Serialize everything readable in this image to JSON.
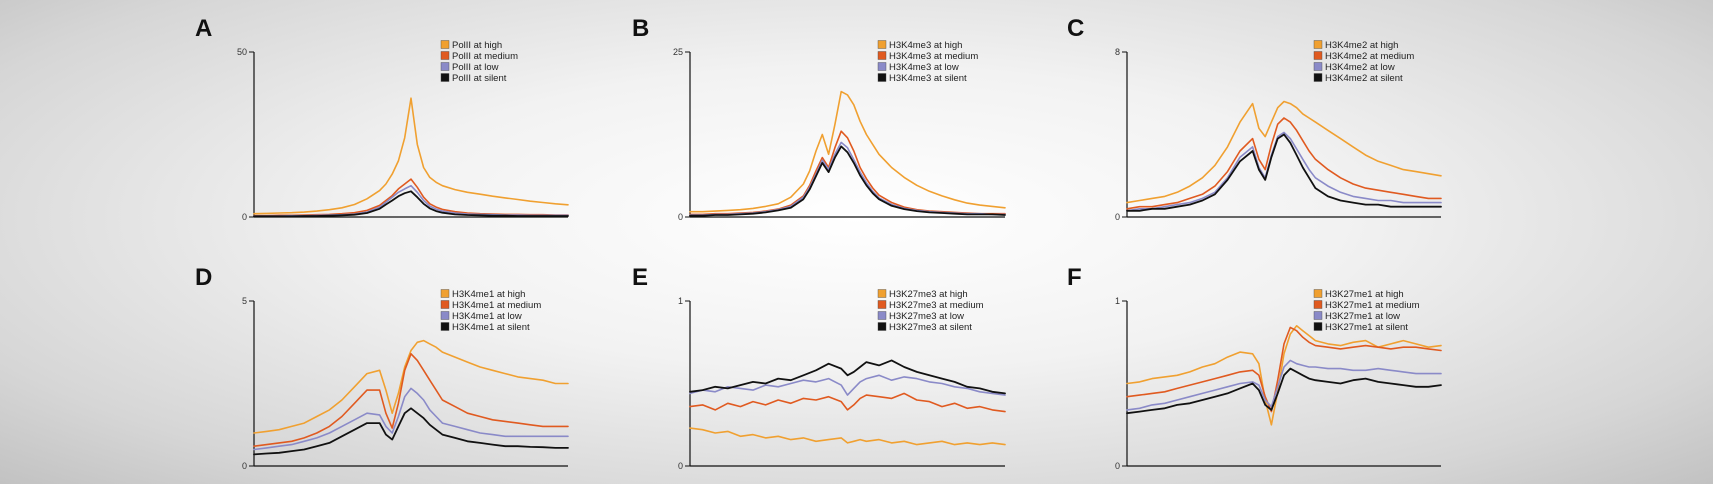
{
  "colors": {
    "high": "#F0A030",
    "medium": "#E05A20",
    "low": "#8A8AC8",
    "silent": "#111111"
  },
  "chart_data": [
    {
      "panel": "A",
      "type": "line",
      "xlabel": "",
      "ylabel": "",
      "ylim": [
        0,
        50
      ],
      "ytick_labels": [
        "50",
        "0"
      ],
      "legend_position": "top-right",
      "x": [
        0,
        4,
        8,
        12,
        16,
        20,
        24,
        28,
        32,
        36,
        40,
        42,
        44,
        46,
        48,
        50,
        52,
        54,
        56,
        58,
        60,
        64,
        68,
        72,
        76,
        80,
        84,
        88,
        92,
        96,
        100
      ],
      "series": [
        {
          "name": "PolII at high",
          "color_key": "high",
          "values": [
            1,
            1.1,
            1.2,
            1.3,
            1.5,
            1.8,
            2.2,
            2.8,
            3.8,
            5.5,
            8,
            10,
            13,
            17,
            24,
            36,
            22,
            15,
            12,
            10.5,
            9.5,
            8.3,
            7.5,
            6.9,
            6.3,
            5.8,
            5.3,
            4.8,
            4.4,
            4.0,
            3.7
          ]
        },
        {
          "name": "PolII at medium",
          "color_key": "medium",
          "values": [
            0.4,
            0.4,
            0.5,
            0.5,
            0.6,
            0.7,
            0.8,
            1.0,
            1.3,
            2.0,
            3.5,
            5,
            6.5,
            8.5,
            10,
            11.5,
            9,
            6,
            4,
            3,
            2.3,
            1.6,
            1.2,
            1.0,
            0.9,
            0.8,
            0.8,
            0.7,
            0.7,
            0.6,
            0.6
          ]
        },
        {
          "name": "PolII at low",
          "color_key": "low",
          "values": [
            0.3,
            0.3,
            0.3,
            0.4,
            0.4,
            0.5,
            0.6,
            0.7,
            0.9,
            1.5,
            3,
            4.5,
            6,
            7.5,
            8.5,
            9.5,
            7.5,
            5,
            3.3,
            2.4,
            1.8,
            1.2,
            0.9,
            0.8,
            0.7,
            0.6,
            0.6,
            0.5,
            0.5,
            0.5,
            0.5
          ]
        },
        {
          "name": "PolII at silent",
          "color_key": "silent",
          "values": [
            0.2,
            0.2,
            0.2,
            0.2,
            0.3,
            0.3,
            0.4,
            0.5,
            0.7,
            1.2,
            2.5,
            3.8,
            5,
            6.3,
            7.2,
            7.8,
            6,
            4,
            2.6,
            1.8,
            1.3,
            0.8,
            0.6,
            0.5,
            0.4,
            0.4,
            0.3,
            0.3,
            0.3,
            0.3,
            0.3
          ]
        }
      ]
    },
    {
      "panel": "B",
      "type": "line",
      "xlabel": "",
      "ylabel": "",
      "ylim": [
        0,
        25
      ],
      "ytick_labels": [
        "25",
        "0"
      ],
      "legend_position": "top-right",
      "x": [
        0,
        4,
        8,
        12,
        16,
        20,
        24,
        28,
        32,
        36,
        38,
        40,
        42,
        44,
        46,
        48,
        50,
        52,
        54,
        56,
        58,
        60,
        64,
        68,
        72,
        76,
        80,
        84,
        88,
        92,
        96,
        100
      ],
      "series": [
        {
          "name": "H3K4me3 at high",
          "color_key": "high",
          "values": [
            0.8,
            0.8,
            0.9,
            1.0,
            1.1,
            1.3,
            1.6,
            2,
            3,
            5,
            7,
            10,
            12.5,
            9.5,
            14,
            19,
            18.5,
            17,
            14.5,
            12.5,
            11,
            9.5,
            7.5,
            6,
            4.8,
            3.9,
            3.2,
            2.6,
            2.1,
            1.8,
            1.6,
            1.4
          ]
        },
        {
          "name": "H3K4me3 at medium",
          "color_key": "medium",
          "values": [
            0.4,
            0.4,
            0.5,
            0.5,
            0.6,
            0.7,
            0.9,
            1.2,
            1.8,
            3.2,
            4.8,
            7,
            9,
            7.5,
            10.5,
            13,
            12,
            10,
            7.5,
            5.8,
            4.4,
            3.3,
            2.2,
            1.5,
            1.1,
            0.9,
            0.8,
            0.7,
            0.6,
            0.5,
            0.5,
            0.5
          ]
        },
        {
          "name": "H3K4me3 at low",
          "color_key": "low",
          "values": [
            0.3,
            0.3,
            0.4,
            0.4,
            0.5,
            0.6,
            0.8,
            1.1,
            1.6,
            3,
            4.5,
            6.5,
            8.6,
            7.2,
            9.5,
            11.3,
            10.5,
            8.7,
            6.8,
            5.2,
            3.9,
            2.9,
            1.9,
            1.3,
            1.0,
            0.8,
            0.7,
            0.6,
            0.5,
            0.5,
            0.4,
            0.4
          ]
        },
        {
          "name": "H3K4me3 at silent",
          "color_key": "silent",
          "values": [
            0.2,
            0.2,
            0.3,
            0.3,
            0.4,
            0.5,
            0.7,
            1.0,
            1.4,
            2.7,
            4.2,
            6.2,
            8.2,
            6.8,
            9,
            10.7,
            9.8,
            8.2,
            6.3,
            4.8,
            3.6,
            2.7,
            1.7,
            1.2,
            0.9,
            0.7,
            0.6,
            0.5,
            0.4,
            0.4,
            0.4,
            0.3
          ]
        }
      ]
    },
    {
      "panel": "C",
      "type": "line",
      "xlabel": "",
      "ylabel": "",
      "ylim": [
        0,
        8
      ],
      "ytick_labels": [
        "8",
        "0"
      ],
      "legend_position": "top-right",
      "x": [
        0,
        4,
        8,
        12,
        16,
        20,
        24,
        28,
        32,
        36,
        40,
        42,
        44,
        46,
        48,
        50,
        52,
        54,
        56,
        58,
        60,
        64,
        68,
        72,
        76,
        80,
        84,
        88,
        92,
        96,
        100
      ],
      "series": [
        {
          "name": "H3K4me2 at high",
          "color_key": "high",
          "values": [
            0.7,
            0.8,
            0.9,
            1.0,
            1.2,
            1.5,
            1.9,
            2.5,
            3.4,
            4.6,
            5.5,
            4.3,
            3.9,
            4.6,
            5.3,
            5.6,
            5.5,
            5.3,
            5.0,
            4.8,
            4.6,
            4.2,
            3.8,
            3.4,
            3.0,
            2.7,
            2.5,
            2.3,
            2.2,
            2.1,
            2.0
          ]
        },
        {
          "name": "H3K4me2 at medium",
          "color_key": "medium",
          "values": [
            0.4,
            0.5,
            0.5,
            0.6,
            0.7,
            0.9,
            1.1,
            1.5,
            2.2,
            3.2,
            3.8,
            2.8,
            2.3,
            3.5,
            4.5,
            4.8,
            4.6,
            4.2,
            3.7,
            3.2,
            2.8,
            2.3,
            1.9,
            1.6,
            1.4,
            1.3,
            1.2,
            1.1,
            1.0,
            0.9,
            0.9
          ]
        },
        {
          "name": "H3K4me2 at low",
          "color_key": "low",
          "values": [
            0.3,
            0.4,
            0.4,
            0.5,
            0.6,
            0.7,
            0.9,
            1.2,
            1.9,
            2.9,
            3.4,
            2.4,
            1.9,
            3.0,
            3.9,
            4.1,
            3.8,
            3.3,
            2.8,
            2.3,
            1.9,
            1.5,
            1.2,
            1.0,
            0.9,
            0.8,
            0.8,
            0.7,
            0.7,
            0.7,
            0.7
          ]
        },
        {
          "name": "H3K4me2 at silent",
          "color_key": "silent",
          "values": [
            0.3,
            0.3,
            0.4,
            0.4,
            0.5,
            0.6,
            0.8,
            1.1,
            1.8,
            2.7,
            3.2,
            2.3,
            1.8,
            2.9,
            3.8,
            4.0,
            3.6,
            3.0,
            2.4,
            1.9,
            1.4,
            1.0,
            0.8,
            0.7,
            0.6,
            0.6,
            0.5,
            0.5,
            0.5,
            0.5,
            0.5
          ]
        }
      ]
    },
    {
      "panel": "D",
      "type": "line",
      "xlabel": "",
      "ylabel": "",
      "ylim": [
        0,
        5
      ],
      "ytick_labels": [
        "5",
        "0"
      ],
      "legend_position": "top-right",
      "x": [
        0,
        4,
        8,
        12,
        16,
        20,
        24,
        28,
        32,
        36,
        40,
        42,
        44,
        46,
        48,
        50,
        52,
        54,
        56,
        58,
        60,
        64,
        68,
        72,
        76,
        80,
        84,
        88,
        92,
        96,
        100
      ],
      "series": [
        {
          "name": "H3K4me1 at high",
          "color_key": "high",
          "values": [
            1.0,
            1.05,
            1.1,
            1.2,
            1.3,
            1.5,
            1.7,
            2.0,
            2.4,
            2.8,
            2.9,
            2.3,
            1.6,
            2.2,
            3.0,
            3.5,
            3.75,
            3.8,
            3.7,
            3.6,
            3.45,
            3.3,
            3.15,
            3.0,
            2.9,
            2.8,
            2.7,
            2.65,
            2.6,
            2.5,
            2.5
          ]
        },
        {
          "name": "H3K4me1 at medium",
          "color_key": "medium",
          "values": [
            0.6,
            0.65,
            0.7,
            0.75,
            0.85,
            1.0,
            1.2,
            1.5,
            1.9,
            2.3,
            2.3,
            1.6,
            1.15,
            1.9,
            2.9,
            3.4,
            3.2,
            2.9,
            2.6,
            2.3,
            2.0,
            1.8,
            1.6,
            1.5,
            1.4,
            1.35,
            1.3,
            1.25,
            1.2,
            1.2,
            1.2
          ]
        },
        {
          "name": "H3K4me1 at low",
          "color_key": "low",
          "values": [
            0.5,
            0.55,
            0.6,
            0.65,
            0.75,
            0.85,
            1.0,
            1.2,
            1.4,
            1.6,
            1.55,
            1.2,
            1.0,
            1.5,
            2.1,
            2.35,
            2.2,
            2.0,
            1.7,
            1.5,
            1.3,
            1.2,
            1.1,
            1.0,
            0.95,
            0.9,
            0.9,
            0.9,
            0.9,
            0.9,
            0.9
          ]
        },
        {
          "name": "H3K4me1 at silent",
          "color_key": "silent",
          "values": [
            0.35,
            0.38,
            0.4,
            0.45,
            0.5,
            0.6,
            0.7,
            0.9,
            1.1,
            1.3,
            1.3,
            0.95,
            0.8,
            1.2,
            1.6,
            1.75,
            1.6,
            1.45,
            1.25,
            1.1,
            0.95,
            0.85,
            0.75,
            0.7,
            0.65,
            0.6,
            0.6,
            0.58,
            0.57,
            0.55,
            0.55
          ]
        }
      ]
    },
    {
      "panel": "E",
      "type": "line",
      "xlabel": "",
      "ylabel": "",
      "ylim": [
        0,
        1
      ],
      "ytick_labels": [
        "1",
        "0"
      ],
      "legend_position": "top-right",
      "x": [
        0,
        4,
        8,
        12,
        16,
        20,
        24,
        28,
        32,
        36,
        40,
        44,
        48,
        50,
        52,
        54,
        56,
        60,
        64,
        68,
        72,
        76,
        80,
        84,
        88,
        92,
        96,
        100
      ],
      "series": [
        {
          "name": "H3K27me3 at high",
          "color_key": "high",
          "values": [
            0.23,
            0.22,
            0.2,
            0.21,
            0.18,
            0.19,
            0.17,
            0.18,
            0.16,
            0.17,
            0.15,
            0.16,
            0.17,
            0.14,
            0.15,
            0.16,
            0.15,
            0.16,
            0.14,
            0.15,
            0.13,
            0.14,
            0.15,
            0.13,
            0.14,
            0.13,
            0.14,
            0.13
          ]
        },
        {
          "name": "H3K27me3 at medium",
          "color_key": "medium",
          "values": [
            0.36,
            0.37,
            0.34,
            0.38,
            0.36,
            0.39,
            0.37,
            0.4,
            0.38,
            0.41,
            0.4,
            0.42,
            0.39,
            0.34,
            0.37,
            0.41,
            0.43,
            0.42,
            0.41,
            0.44,
            0.4,
            0.39,
            0.36,
            0.38,
            0.35,
            0.36,
            0.34,
            0.33
          ]
        },
        {
          "name": "H3K27me3 at low",
          "color_key": "low",
          "values": [
            0.44,
            0.46,
            0.45,
            0.48,
            0.47,
            0.46,
            0.49,
            0.48,
            0.5,
            0.52,
            0.51,
            0.53,
            0.49,
            0.43,
            0.47,
            0.51,
            0.53,
            0.55,
            0.52,
            0.54,
            0.53,
            0.51,
            0.5,
            0.48,
            0.47,
            0.45,
            0.44,
            0.43
          ]
        },
        {
          "name": "H3K27me3 at silent",
          "color_key": "silent",
          "values": [
            0.45,
            0.46,
            0.48,
            0.47,
            0.49,
            0.51,
            0.5,
            0.53,
            0.52,
            0.55,
            0.58,
            0.62,
            0.59,
            0.55,
            0.57,
            0.6,
            0.63,
            0.61,
            0.64,
            0.6,
            0.57,
            0.55,
            0.53,
            0.51,
            0.48,
            0.47,
            0.45,
            0.44
          ]
        }
      ]
    },
    {
      "panel": "F",
      "type": "line",
      "xlabel": "",
      "ylabel": "",
      "ylim": [
        0,
        1
      ],
      "ytick_labels": [
        "1",
        "0"
      ],
      "legend_position": "top-right",
      "x": [
        0,
        4,
        8,
        12,
        16,
        20,
        24,
        28,
        32,
        36,
        40,
        42,
        44,
        46,
        48,
        50,
        52,
        54,
        56,
        58,
        60,
        64,
        68,
        72,
        76,
        80,
        84,
        88,
        92,
        96,
        100
      ],
      "series": [
        {
          "name": "H3K27me1 at high",
          "color_key": "high",
          "values": [
            0.5,
            0.51,
            0.53,
            0.54,
            0.55,
            0.57,
            0.6,
            0.62,
            0.66,
            0.69,
            0.68,
            0.62,
            0.4,
            0.25,
            0.45,
            0.68,
            0.8,
            0.85,
            0.82,
            0.79,
            0.76,
            0.74,
            0.73,
            0.75,
            0.76,
            0.72,
            0.74,
            0.76,
            0.74,
            0.72,
            0.73
          ]
        },
        {
          "name": "H3K27me1 at medium",
          "color_key": "medium",
          "values": [
            0.42,
            0.43,
            0.44,
            0.45,
            0.47,
            0.49,
            0.51,
            0.53,
            0.55,
            0.57,
            0.58,
            0.55,
            0.42,
            0.33,
            0.52,
            0.74,
            0.84,
            0.82,
            0.78,
            0.75,
            0.73,
            0.72,
            0.71,
            0.72,
            0.73,
            0.72,
            0.71,
            0.72,
            0.72,
            0.71,
            0.7
          ]
        },
        {
          "name": "H3K27me1 at low",
          "color_key": "low",
          "values": [
            0.34,
            0.35,
            0.37,
            0.38,
            0.4,
            0.42,
            0.44,
            0.46,
            0.48,
            0.5,
            0.51,
            0.49,
            0.4,
            0.36,
            0.48,
            0.6,
            0.64,
            0.62,
            0.61,
            0.6,
            0.6,
            0.59,
            0.59,
            0.58,
            0.58,
            0.59,
            0.58,
            0.57,
            0.56,
            0.56,
            0.56
          ]
        },
        {
          "name": "H3K27me1 at silent",
          "color_key": "silent",
          "values": [
            0.32,
            0.33,
            0.34,
            0.35,
            0.37,
            0.38,
            0.4,
            0.42,
            0.44,
            0.47,
            0.5,
            0.46,
            0.37,
            0.34,
            0.44,
            0.55,
            0.59,
            0.57,
            0.55,
            0.53,
            0.52,
            0.51,
            0.5,
            0.52,
            0.53,
            0.51,
            0.5,
            0.49,
            0.48,
            0.48,
            0.49
          ]
        }
      ]
    }
  ]
}
